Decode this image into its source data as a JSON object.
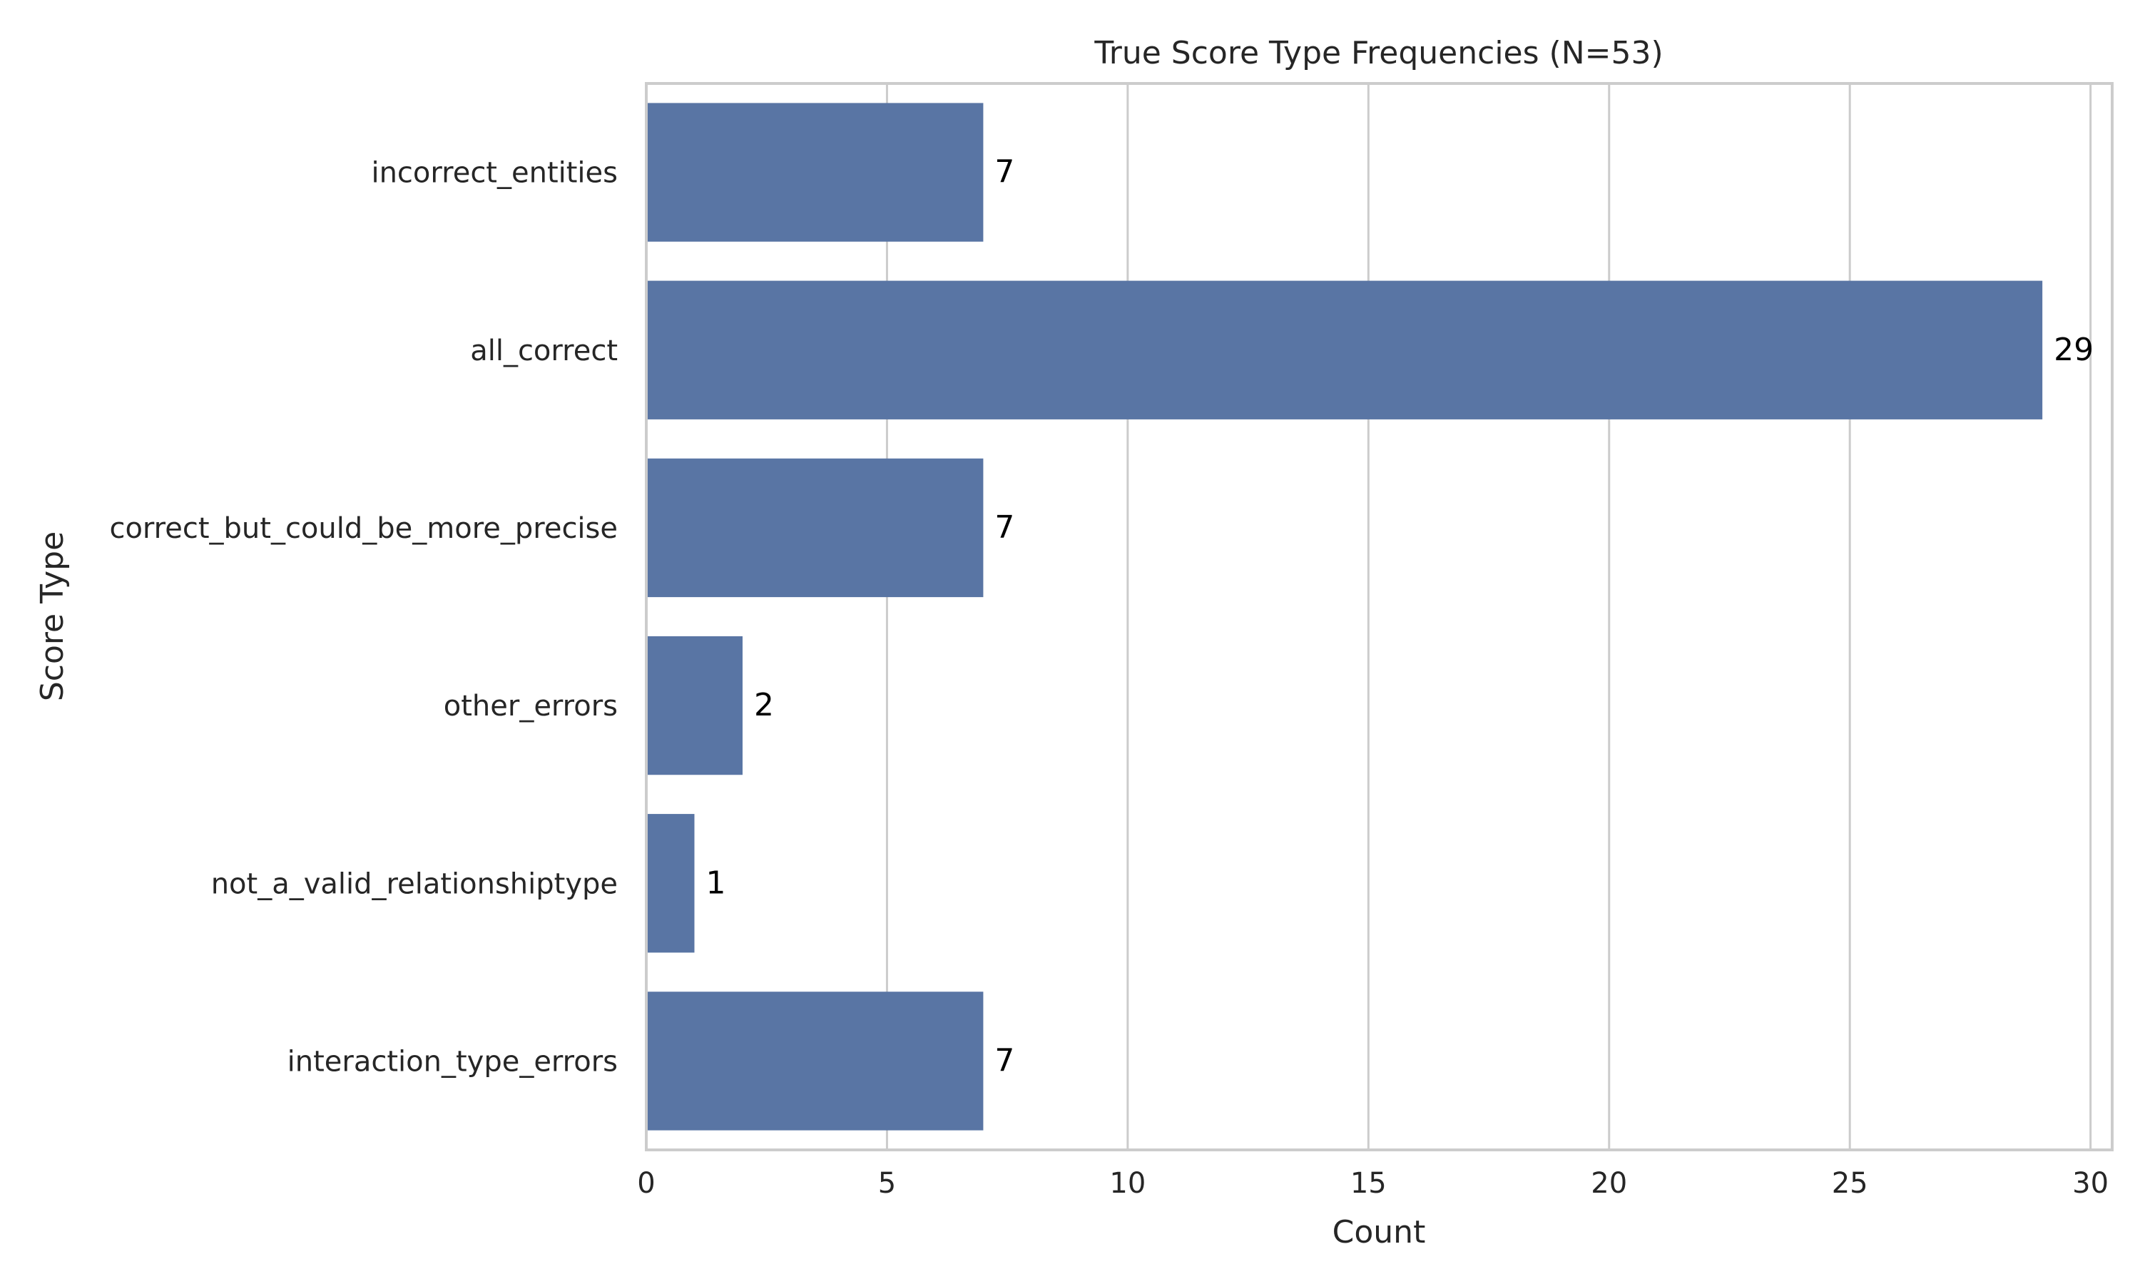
{
  "chart_data": {
    "type": "bar",
    "orientation": "horizontal",
    "title": "True Score Type Frequencies (N=53)",
    "xlabel": "Count",
    "ylabel": "Score Type",
    "categories": [
      "incorrect_entities",
      "all_correct",
      "correct_but_could_be_more_precise",
      "other_errors",
      "not_a_valid_relationshiptype",
      "interaction_type_errors"
    ],
    "values": [
      7,
      29,
      7,
      2,
      1,
      7
    ],
    "data_labels": [
      "7",
      "29",
      "7",
      "2",
      "1",
      "7"
    ],
    "xlim": [
      0,
      30.45
    ],
    "xticks": [
      0,
      5,
      10,
      15,
      20,
      25,
      30
    ],
    "xtick_labels": [
      "0",
      "5",
      "10",
      "15",
      "20",
      "25",
      "30"
    ],
    "grid": "vertical",
    "bar_color": "#5975a4"
  }
}
